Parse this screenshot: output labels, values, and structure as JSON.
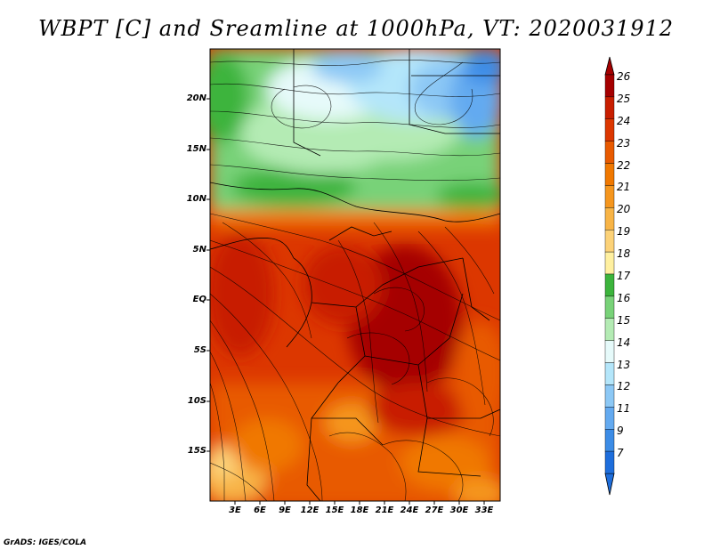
{
  "title": "WBPT [C] and Sreamline at 1000hPa, VT: 2020031912",
  "credit": "GrADS: IGES/COLA",
  "lat_labels": [
    "20N",
    "15N",
    "10N",
    "5N",
    "EQ",
    "5S",
    "10S",
    "15S"
  ],
  "lon_labels": [
    "3E",
    "6E",
    "9E",
    "12E",
    "15E",
    "18E",
    "21E",
    "24E",
    "27E",
    "30E",
    "33E"
  ],
  "colorbar": {
    "labels": [
      "26",
      "25",
      "24",
      "23",
      "22",
      "21",
      "20",
      "19",
      "18",
      "17",
      "16",
      "15",
      "14",
      "13",
      "12",
      "11",
      "9",
      "7"
    ],
    "colors": [
      "#a50000",
      "#c81e00",
      "#dc3700",
      "#e85a00",
      "#f07800",
      "#f5961e",
      "#f8b446",
      "#fcd278",
      "#fff0a0",
      "#3cb43c",
      "#78d278",
      "#b4ebb4",
      "#e6fafa",
      "#b4e6fa",
      "#8cc8f5",
      "#64aaf0",
      "#3c8ce6",
      "#1e6edc"
    ]
  },
  "chart_data": {
    "type": "heatmap",
    "title": "WBPT [C] and Sreamline at 1000hPa, VT: 2020031912",
    "variable": "Wet-bulb potential temperature",
    "units": "C",
    "level": "1000hPa",
    "valid_time": "2020031912",
    "lat_range": [
      -19,
      25
    ],
    "lon_range": [
      0,
      35
    ],
    "contour_levels": [
      7,
      9,
      11,
      12,
      13,
      14,
      15,
      16,
      17,
      18,
      19,
      20,
      21,
      22,
      23,
      24,
      25,
      26
    ],
    "overlay": "streamlines"
  }
}
